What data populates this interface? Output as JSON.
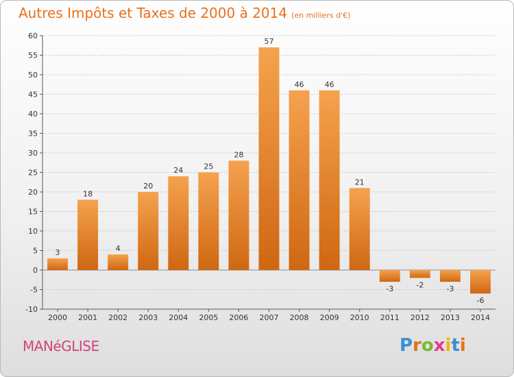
{
  "header": {
    "title": "Autres Impôts et Taxes de 2000 à 2014",
    "unit": "(en milliers d'€)"
  },
  "footer": {
    "commune": "MANéGLISE",
    "logo_letters": [
      "P",
      "r",
      "o",
      "x",
      "i",
      "t",
      "i"
    ],
    "logo_colors": [
      "#3a8fd6",
      "#e8701a",
      "#7ab833",
      "#e63d8c",
      "#f2b70a",
      "#3a8fd6",
      "#e8701a"
    ]
  },
  "colors": {
    "bar_light": "#f5a24e",
    "bar_dark": "#cf6712",
    "axis": "#555555",
    "grid": "#c8c8c8"
  },
  "chart_data": {
    "type": "bar",
    "title": "Autres Impôts et Taxes de 2000 à 2014",
    "categories": [
      "2000",
      "2001",
      "2002",
      "2003",
      "2004",
      "2005",
      "2006",
      "2007",
      "2008",
      "2009",
      "2010",
      "2011",
      "2012",
      "2013",
      "2014"
    ],
    "values": [
      3,
      18,
      4,
      20,
      24,
      25,
      28,
      57,
      46,
      46,
      21,
      -3,
      -2,
      -3,
      -6
    ],
    "ylim": [
      -10,
      60
    ],
    "yticks": [
      -10,
      -5,
      0,
      5,
      10,
      15,
      20,
      25,
      30,
      35,
      40,
      45,
      50,
      55,
      60
    ],
    "grid": true
  }
}
